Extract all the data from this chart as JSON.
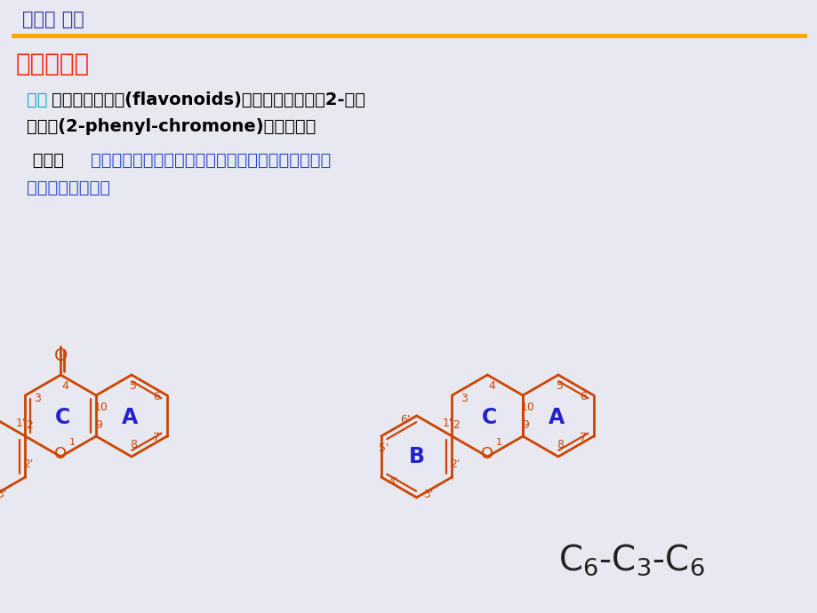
{
  "title": "第一节 概述",
  "title_color": "#3333AA",
  "separator_color": "#FFA500",
  "section_title": "一、定义：",
  "section_title_color": "#FF2200",
  "para1_line1_prefix": "以前",
  "para1_line1_prefix_color": "#00AACC",
  "para1_line1_rest": "，黄酮类化合物(flavonoids)主要是指基本母核2-苯基",
  "para1_line2": "色原酮(2-phenyl-chromone)类化合物；",
  "para1_color": "#000000",
  "para2_line1_prefix": " 现今，",
  "para2_line1_rest": "黄酮类化合物是泛指两个苯环通过三碳相互连接而成",
  "para2_line2": "的一系列化合物。",
  "para2_color": "#2244CC",
  "para2_prefix_color": "#000000",
  "molecule_color": "#CC4400",
  "label_color": "#CC4400",
  "ring_label_color": "#2222CC",
  "c6c3c6_color": "#222222",
  "background_color": "#E8E8F0"
}
